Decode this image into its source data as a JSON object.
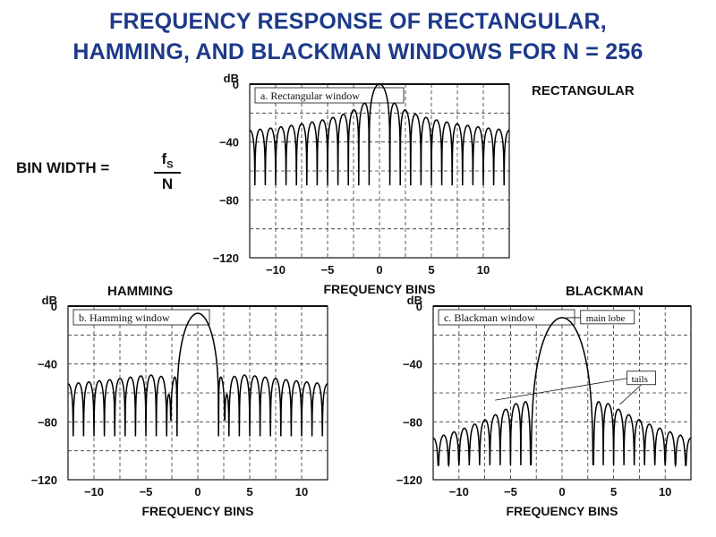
{
  "title": {
    "line1": "FREQUENCY RESPONSE OF RECTANGULAR,",
    "line2": "HAMMING, AND BLACKMAN WINDOWS FOR N = 256"
  },
  "formula": {
    "label": "BIN  WIDTH =",
    "numerator": "f",
    "numerator_sub": "S",
    "denominator": "N"
  },
  "chart_data": [
    {
      "type": "line",
      "name": "RECTANGULAR",
      "inner_label": "a.  Rectangular window",
      "window": "rectangular",
      "xlabel": "FREQUENCY BINS",
      "ylabel": "dB",
      "xlim": [
        -12.5,
        12.5
      ],
      "ylim": [
        -120,
        0
      ],
      "x_ticks": [
        -10,
        -5,
        0,
        5,
        10
      ],
      "y_ticks": [
        0,
        -40,
        -80,
        -120
      ],
      "main_lobe_peak_db": 0,
      "main_lobe_half_width_bins": 1,
      "first_sidelobe_db": -13,
      "sidelobe_level_range_db": [
        -13,
        -32
      ],
      "null_depth_db": -70,
      "grid": "dashed"
    },
    {
      "type": "line",
      "name": "HAMMING",
      "inner_label": "b.  Hamming window",
      "window": "hamming",
      "xlabel": "FREQUENCY BINS",
      "ylabel": "dB",
      "xlim": [
        -12.5,
        12.5
      ],
      "ylim": [
        -120,
        0
      ],
      "x_ticks": [
        -10,
        -5,
        0,
        5,
        10
      ],
      "y_ticks": [
        0,
        -40,
        -80,
        -120
      ],
      "main_lobe_peak_db": -5,
      "main_lobe_half_width_bins": 2,
      "sidelobe_level_range_db": [
        -50,
        -55
      ],
      "null_depth_db": -90,
      "grid": "dashed"
    },
    {
      "type": "line",
      "name": "BLACKMAN",
      "inner_label": "c.  Blackman window",
      "window": "blackman",
      "xlabel": "FREQUENCY BINS",
      "ylabel": "dB",
      "xlim": [
        -12.5,
        12.5
      ],
      "ylim": [
        -120,
        0
      ],
      "x_ticks": [
        -10,
        -5,
        0,
        5,
        10
      ],
      "y_ticks": [
        0,
        -40,
        -80,
        -120
      ],
      "main_lobe_peak_db": -8,
      "main_lobe_half_width_bins": 2.8,
      "sidelobe_level_range_db": [
        -65,
        -95
      ],
      "null_depth_db": -110,
      "annotations": [
        "main lobe",
        "tails"
      ],
      "grid": "dashed"
    }
  ]
}
